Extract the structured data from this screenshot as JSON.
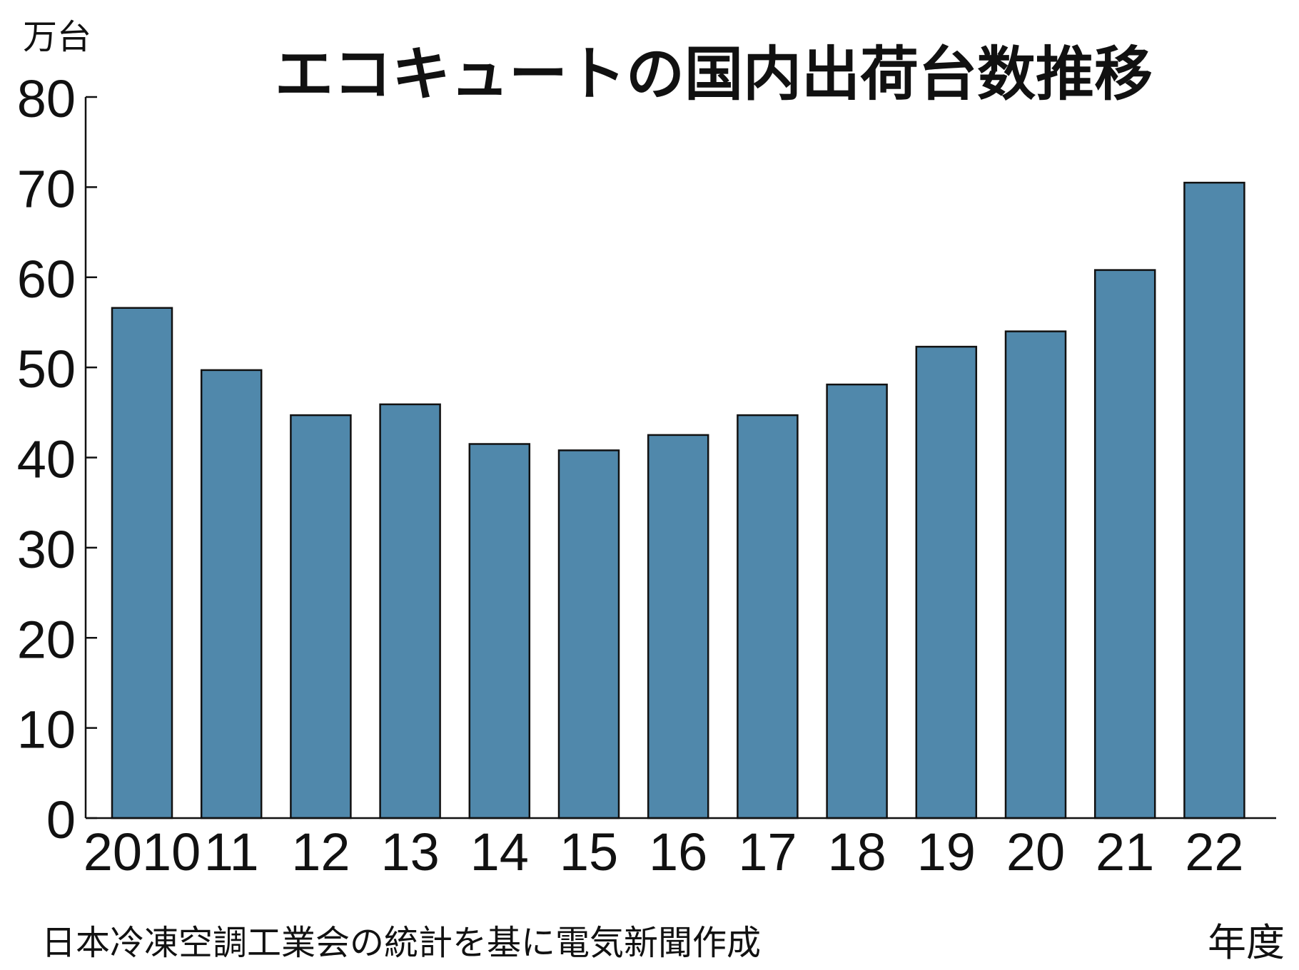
{
  "chart_data": {
    "type": "bar",
    "title": "エコキュートの国内出荷台数推移",
    "ylabel": "万台",
    "xlabel": "年度",
    "source": "日本冷凍空調工業会の統計を基に電気新聞作成",
    "categories": [
      "2010",
      "11",
      "12",
      "13",
      "14",
      "15",
      "16",
      "17",
      "18",
      "19",
      "20",
      "21",
      "22"
    ],
    "values": [
      56.6,
      49.7,
      44.7,
      45.9,
      41.5,
      40.8,
      42.5,
      44.7,
      48.1,
      52.3,
      54.0,
      60.8,
      70.5
    ],
    "ylim": [
      0,
      80
    ],
    "yticks": [
      "0",
      "10",
      "20",
      "30",
      "40",
      "50",
      "60",
      "70",
      "80"
    ],
    "bar_color": "#5088ab",
    "grid": false,
    "legend": "none"
  }
}
